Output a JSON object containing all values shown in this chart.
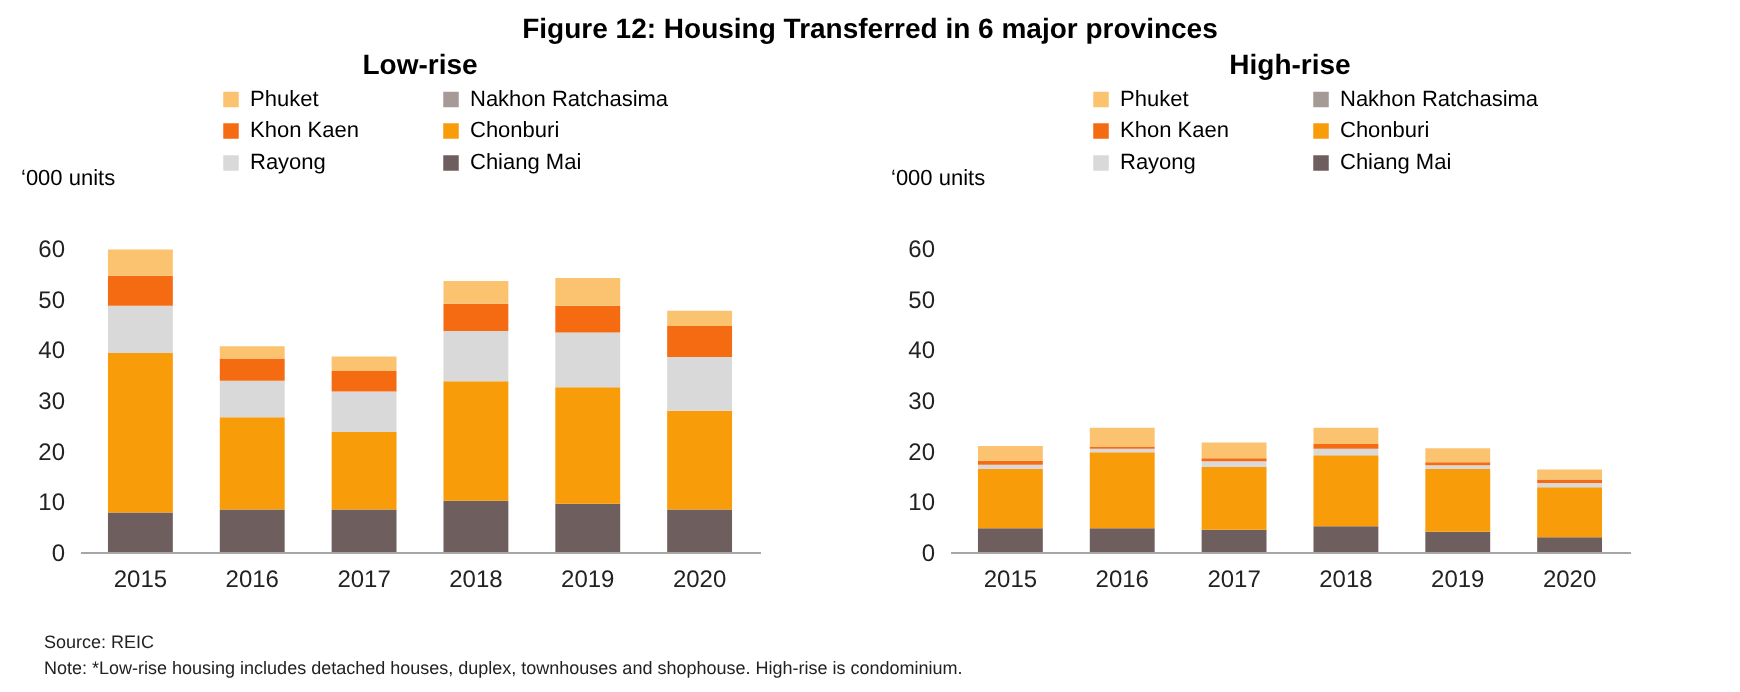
{
  "chart_data": [
    {
      "type": "bar",
      "title": "Figure 12: Housing Transferred in 6 major provinces",
      "subtitle": "Low-rise",
      "ylabel": "‘000 units",
      "stacked": true,
      "legend": "top",
      "grid": false,
      "categories": [
        "2015",
        "2016",
        "2017",
        "2018",
        "2019",
        "2020"
      ],
      "ylim": [
        0,
        60
      ],
      "yticks": [
        0,
        10,
        20,
        30,
        40,
        50,
        60
      ],
      "series": [
        {
          "name": "Chiang Mai",
          "color": "#6e5f5e",
          "values": [
            7.8,
            8.4,
            8.4,
            10.1,
            9.5,
            8.4
          ]
        },
        {
          "name": "Chonburi",
          "color": "#f99c0a",
          "values": [
            31.5,
            18.2,
            15.3,
            23.6,
            23.0,
            19.5
          ]
        },
        {
          "name": "Nakhon Ratchasima",
          "color": "#a69a97",
          "values": [
            null,
            null,
            null,
            null,
            null,
            null
          ]
        },
        {
          "name": "Rayong",
          "color": "#d9d9d9",
          "values": [
            9.3,
            7.2,
            8.0,
            9.9,
            10.8,
            10.6
          ]
        },
        {
          "name": "Khon Kaen",
          "color": "#f46b12",
          "values": [
            5.9,
            4.4,
            4.0,
            5.4,
            5.3,
            6.1
          ]
        },
        {
          "name": "Phuket",
          "color": "#fbc36f",
          "values": [
            5.2,
            2.4,
            2.9,
            4.5,
            5.5,
            3.0
          ]
        }
      ],
      "annotations": [
        "Source: REIC",
        "Note: *Low-rise housing  includes detached houses, duplex, townhouses and shophouse. High-rise is condominium."
      ]
    },
    {
      "type": "bar",
      "subtitle": "High-rise",
      "ylabel": "‘000 units",
      "stacked": true,
      "legend": "top",
      "grid": false,
      "categories": [
        "2015",
        "2016",
        "2017",
        "2018",
        "2019",
        "2020"
      ],
      "ylim": [
        0,
        60
      ],
      "yticks": [
        0,
        10,
        20,
        30,
        40,
        50,
        60
      ],
      "series": [
        {
          "name": "Chiang Mai",
          "color": "#6e5f5e",
          "values": [
            4.7,
            4.7,
            4.4,
            5.1,
            4.0,
            2.9
          ]
        },
        {
          "name": "Chonburi",
          "color": "#f99c0a",
          "values": [
            11.7,
            15.0,
            12.4,
            14.0,
            12.4,
            9.9
          ]
        },
        {
          "name": "Nakhon Ratchasima",
          "color": "#a69a97",
          "values": [
            null,
            null,
            null,
            null,
            null,
            null
          ]
        },
        {
          "name": "Rayong",
          "color": "#d9d9d9",
          "values": [
            0.8,
            0.7,
            1.1,
            1.3,
            0.7,
            0.8
          ]
        },
        {
          "name": "Khon Kaen",
          "color": "#f46b12",
          "values": [
            0.8,
            0.4,
            0.6,
            0.9,
            0.6,
            0.7
          ]
        },
        {
          "name": "Phuket",
          "color": "#fbc36f",
          "values": [
            2.9,
            3.7,
            3.1,
            3.2,
            2.8,
            2.0
          ]
        }
      ]
    }
  ]
}
